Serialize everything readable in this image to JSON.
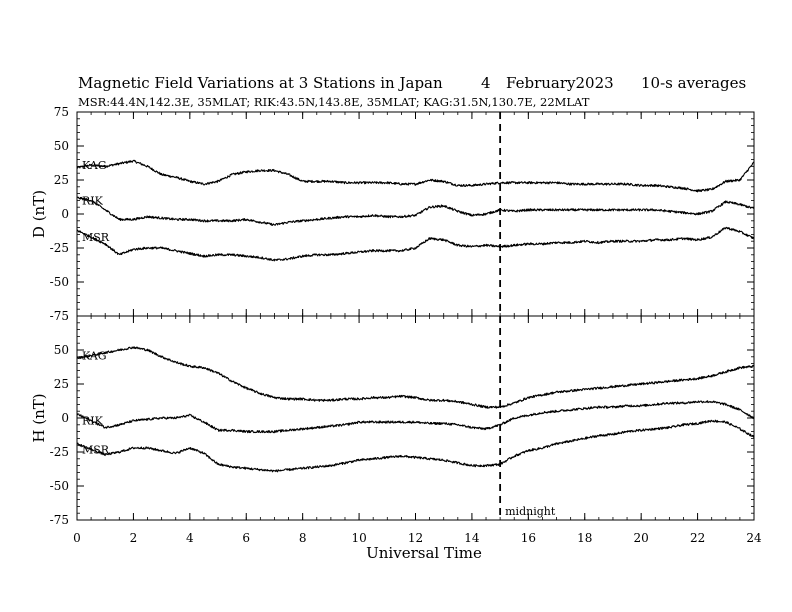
{
  "chart_data": {
    "type": "line",
    "title": "Magnetic Field Variations at 3 Stations in Japan",
    "date_day": "4",
    "date_month_year": "February2023",
    "averaging": "10-s averages",
    "subtitle": "MSR:44.4N,142.3E, 35MLAT;  RIK:43.5N,143.8E, 35MLAT;  KAG:31.5N,130.7E, 22MLAT",
    "xlabel": "Universal Time",
    "xlim": [
      0,
      24
    ],
    "xticks": [
      "0",
      "2",
      "4",
      "6",
      "8",
      "10",
      "12",
      "14",
      "16",
      "18",
      "20",
      "22",
      "24"
    ],
    "annotation": {
      "text": "midnight",
      "x": 15
    },
    "panels": [
      {
        "id": "D",
        "ylabel": "D (nT)",
        "ylim": [
          -75,
          75
        ],
        "yticks": [
          "75",
          "50",
          "25",
          "0",
          "-25",
          "-50",
          "-75"
        ],
        "series": [
          {
            "name": "KAG",
            "x": [
              0,
              0.5,
              1,
              1.5,
              2,
              2.5,
              3,
              3.5,
              4,
              4.5,
              5,
              5.5,
              6,
              6.5,
              7,
              7.5,
              8,
              8.5,
              9,
              9.5,
              10,
              10.5,
              11,
              11.5,
              12,
              12.5,
              13,
              13.5,
              14,
              14.5,
              15,
              15.5,
              16,
              16.5,
              17,
              17.5,
              18,
              18.5,
              19,
              19.5,
              20,
              20.5,
              21,
              21.5,
              22,
              22.5,
              23,
              23.5,
              24
            ],
            "values": [
              34,
              36,
              35,
              37,
              39,
              35,
              29,
              27,
              24,
              22,
              24,
              29,
              31,
              32,
              32,
              29,
              24,
              24,
              24,
              23,
              23,
              23,
              23,
              22,
              22,
              25,
              24,
              21,
              21,
              22,
              23,
              23,
              23,
              23,
              23,
              22,
              22,
              22,
              22,
              22,
              21,
              21,
              20,
              19,
              17,
              18,
              24,
              25,
              38
            ]
          },
          {
            "name": "RIK",
            "x": [
              0,
              0.5,
              1,
              1.5,
              2,
              2.5,
              3,
              3.5,
              4,
              4.5,
              5,
              5.5,
              6,
              6.5,
              7,
              7.5,
              8,
              8.5,
              9,
              9.5,
              10,
              10.5,
              11,
              11.5,
              12,
              12.5,
              13,
              13.5,
              14,
              14.5,
              15,
              15.5,
              16,
              16.5,
              17,
              17.5,
              18,
              18.5,
              19,
              19.5,
              20,
              20.5,
              21,
              21.5,
              22,
              22.5,
              23,
              23.5,
              24
            ],
            "values": [
              12,
              10,
              3,
              -4,
              -4,
              -2,
              -3,
              -4,
              -4,
              -5,
              -5,
              -5,
              -4,
              -6,
              -8,
              -6,
              -5,
              -4,
              -3,
              -2,
              -2,
              -1,
              -2,
              -2,
              -1,
              5,
              6,
              2,
              -1,
              0,
              3,
              2,
              3,
              3,
              3,
              3,
              3,
              3,
              3,
              3,
              3,
              3,
              2,
              1,
              0,
              2,
              9,
              7,
              4
            ]
          },
          {
            "name": "MSR",
            "x": [
              0,
              0.5,
              1,
              1.5,
              2,
              2.5,
              3,
              3.5,
              4,
              4.5,
              5,
              5.5,
              6,
              6.5,
              7,
              7.5,
              8,
              8.5,
              9,
              9.5,
              10,
              10.5,
              11,
              11.5,
              12,
              12.5,
              13,
              13.5,
              14,
              14.5,
              15,
              15.5,
              16,
              16.5,
              17,
              17.5,
              18,
              18.5,
              19,
              19.5,
              20,
              20.5,
              21,
              21.5,
              22,
              22.5,
              23,
              23.5,
              24
            ],
            "values": [
              -12,
              -17,
              -22,
              -30,
              -26,
              -25,
              -25,
              -27,
              -29,
              -31,
              -30,
              -30,
              -31,
              -32,
              -34,
              -33,
              -31,
              -30,
              -30,
              -29,
              -28,
              -27,
              -27,
              -27,
              -25,
              -18,
              -19,
              -23,
              -24,
              -23,
              -24,
              -23,
              -22,
              -22,
              -21,
              -21,
              -20,
              -21,
              -20,
              -20,
              -20,
              -19,
              -19,
              -18,
              -19,
              -17,
              -10,
              -13,
              -18
            ]
          }
        ]
      },
      {
        "id": "H",
        "ylabel": "H (nT)",
        "ylim": [
          -75,
          75
        ],
        "yticks": [
          "75",
          "50",
          "25",
          "0",
          "-25",
          "-50",
          "-75"
        ],
        "series": [
          {
            "name": "KAG",
            "x": [
              0,
              0.5,
              1,
              1.5,
              2,
              2.5,
              3,
              3.5,
              4,
              4.5,
              5,
              5.5,
              6,
              6.5,
              7,
              7.5,
              8,
              8.5,
              9,
              9.5,
              10,
              10.5,
              11,
              11.5,
              12,
              12.5,
              13,
              13.5,
              14,
              14.5,
              15,
              15.5,
              16,
              16.5,
              17,
              17.5,
              18,
              18.5,
              19,
              19.5,
              20,
              20.5,
              21,
              21.5,
              22,
              22.5,
              23,
              23.5,
              24
            ],
            "values": [
              44,
              46,
              48,
              50,
              52,
              50,
              45,
              41,
              38,
              37,
              33,
              27,
              22,
              18,
              15,
              14,
              14,
              13,
              13,
              14,
              14,
              15,
              15,
              16,
              15,
              13,
              13,
              12,
              10,
              8,
              8,
              11,
              15,
              17,
              19,
              20,
              21,
              22,
              23,
              24,
              25,
              26,
              27,
              28,
              29,
              31,
              34,
              37,
              38
            ]
          },
          {
            "name": "RIK",
            "x": [
              0,
              0.5,
              1,
              1.5,
              2,
              2.5,
              3,
              3.5,
              4,
              4.5,
              5,
              5.5,
              6,
              6.5,
              7,
              7.5,
              8,
              8.5,
              9,
              9.5,
              10,
              10.5,
              11,
              11.5,
              12,
              12.5,
              13,
              13.5,
              14,
              14.5,
              15,
              15.5,
              16,
              16.5,
              17,
              17.5,
              18,
              18.5,
              19,
              19.5,
              20,
              20.5,
              21,
              21.5,
              22,
              22.5,
              23,
              23.5,
              24
            ],
            "values": [
              3,
              -2,
              -7,
              -5,
              -2,
              -1,
              0,
              0,
              2,
              -3,
              -9,
              -9,
              -10,
              -10,
              -10,
              -9,
              -8,
              -7,
              -6,
              -5,
              -3,
              -3,
              -3,
              -3,
              -3,
              -4,
              -4,
              -5,
              -7,
              -8,
              -5,
              0,
              2,
              4,
              5,
              6,
              7,
              8,
              8,
              9,
              9,
              10,
              11,
              11,
              12,
              12,
              10,
              6,
              0
            ]
          },
          {
            "name": "MSR",
            "x": [
              0,
              0.5,
              1,
              1.5,
              2,
              2.5,
              3,
              3.5,
              4,
              4.5,
              5,
              5.5,
              6,
              6.5,
              7,
              7.5,
              8,
              8.5,
              9,
              9.5,
              10,
              10.5,
              11,
              11.5,
              12,
              12.5,
              13,
              13.5,
              14,
              14.5,
              15,
              15.5,
              16,
              16.5,
              17,
              17.5,
              18,
              18.5,
              19,
              19.5,
              20,
              20.5,
              21,
              21.5,
              22,
              22.5,
              23,
              23.5,
              24
            ],
            "values": [
              -19,
              -23,
              -27,
              -25,
              -22,
              -22,
              -24,
              -26,
              -22,
              -26,
              -34,
              -36,
              -37,
              -38,
              -39,
              -38,
              -37,
              -36,
              -35,
              -33,
              -31,
              -30,
              -29,
              -28,
              -29,
              -30,
              -31,
              -33,
              -35,
              -35,
              -34,
              -28,
              -24,
              -22,
              -19,
              -17,
              -15,
              -13,
              -12,
              -10,
              -9,
              -8,
              -7,
              -5,
              -4,
              -2,
              -3,
              -8,
              -14
            ]
          }
        ]
      }
    ]
  }
}
